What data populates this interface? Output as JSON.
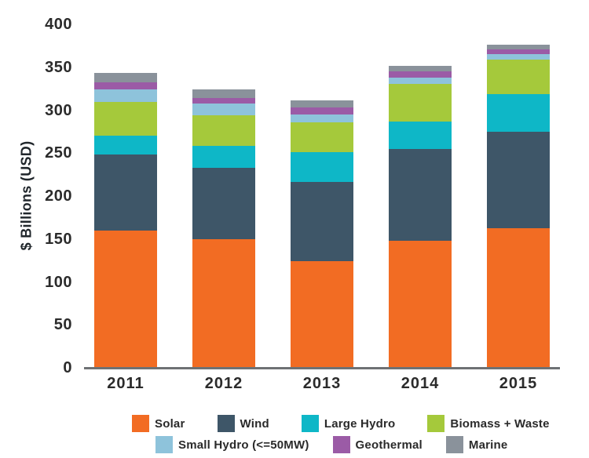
{
  "chart_data": {
    "type": "bar",
    "subtype": "stacked",
    "title": "",
    "ylabel": "$ Billions (USD)",
    "xlabel": "",
    "ylim": [
      0,
      400
    ],
    "yticks": [
      0,
      50,
      100,
      150,
      200,
      250,
      300,
      350,
      400
    ],
    "grid": false,
    "legend_position": "bottom",
    "categories": [
      "2011",
      "2012",
      "2013",
      "2014",
      "2015"
    ],
    "series": [
      {
        "name": "Solar",
        "color": "#F26C23",
        "values": [
          160,
          150,
          124,
          148,
          163
        ]
      },
      {
        "name": "Wind",
        "color": "#3E5668",
        "values": [
          88,
          83,
          92,
          107,
          112
        ]
      },
      {
        "name": "Large Hydro",
        "color": "#0EB7C7",
        "values": [
          22,
          25,
          35,
          32,
          44
        ]
      },
      {
        "name": "Biomass + Waste",
        "color": "#A5C93B",
        "values": [
          40,
          36,
          35,
          44,
          40
        ]
      },
      {
        "name": "Small Hydro (<=50MW)",
        "color": "#8EC3DB",
        "values": [
          14,
          14,
          9,
          7,
          6
        ]
      },
      {
        "name": "Geothermal",
        "color": "#9B5BA6",
        "values": [
          8,
          6,
          8,
          7,
          6
        ]
      },
      {
        "name": "Marine",
        "color": "#8A929B",
        "values": [
          11,
          10,
          8,
          7,
          5
        ]
      }
    ],
    "totals": [
      343,
      324,
      311,
      352,
      376
    ],
    "legend_rows": [
      [
        "Solar",
        "Wind",
        "Large Hydro",
        "Biomass + Waste"
      ],
      [
        "Small Hydro (<=50MW)",
        "Geothermal",
        "Marine"
      ]
    ],
    "axis_color": "#6E7174",
    "text_color": "#2A2A2A"
  }
}
